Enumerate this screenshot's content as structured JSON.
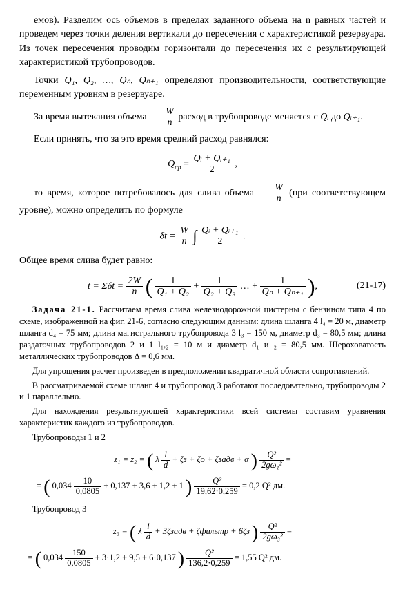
{
  "para1": "емов). Разделим ось объемов в пределах заданного объема на n равных частей и проведем через точки деления вертикали до пересечения с характеристикой резервуара. Из точек пересечения проводим горизонтали до пересечения их с результирующей характеристикой трубопроводов.",
  "para2_pre": "Точки ",
  "para2_q": "Q₁, Q₂, …, Qₙ, Qₙ₊₁",
  "para2_post": " определяют производительности, соответствующие переменным уровням в резервуаре.",
  "para3_pre": "За время вытекания объема ",
  "para3_post": " расход в трубопроводе меняется с ",
  "para3_qi": "Qᵢ",
  "para3_to": " до ",
  "para3_qi1": "Qᵢ₊₁",
  "para4": "Если принять, что за это время средний расход равнялся:",
  "eq1_lhs": "Q",
  "eq1_sub": "cp",
  "eq1_eq": " = ",
  "eq1_num": "Qᵢ + Qᵢ₊₁",
  "eq1_den": "2",
  "para5_pre": "то время, которое потребовалось для слива объема ",
  "para5_post": " (при соответствующем уровне), можно определить по формуле",
  "eq2_lhs": "δt = ",
  "eq2_Wn_num": "W",
  "eq2_Wn_den": "n",
  "eq2_slash": " / ",
  "eq2_num": "Qᵢ + Qᵢ₊₁",
  "eq2_den": "2",
  "para6": "Общее время слива будет равно:",
  "eq3_lhs": "t = Σδt = ",
  "eq3_2Wn_num": "2W",
  "eq3_2Wn_den": "n",
  "eq3_f1_num": "1",
  "eq3_f1_den": "Q₁ + Q₂",
  "eq3_plus": " + ",
  "eq3_f2_num": "1",
  "eq3_f2_den": "Q₂ + Q₃",
  "eq3_dots": " … + ",
  "eq3_f3_num": "1",
  "eq3_f3_den": "Qₙ + Qₙ₊₁",
  "eq3_num": "(21-17)",
  "task_title": "Задача 21-1.",
  "task_body": " Рассчитаем время слива железнодорожной цистерны с бензином типа 4 по схеме, изображенной на фиг. 21-6, согласно следующим данным: длина шланга 4 l₄ = 20 м, диаметр шланга d₄ = 75 мм; длина магистрального трубопровода 3 l₃ = 150 м, диаметр d₃ = 80,5 мм; длина раздаточных трубопроводов 2 и 1 l₁,₂ = 10 м и диаметр d₁ и ₂ = 80,5 мм. Шероховатость металлических трубопроводов Δ = 0,6 мм.",
  "task_p2": "Для упрощения расчет произведен в предположении квадратичной области сопротивлений.",
  "task_p3": "В рассматриваемой схеме шланг 4 и трубопровод 3 работают последовательно, трубопроводы 2 и 1 параллельно.",
  "task_p4": "Для нахождения результирующей характеристики всей системы составим уравнения характеристик каждого из трубопроводов.",
  "pipes12_label": "Трубопроводы 1 и 2",
  "eq4_lhs": "z₁ = z₂ = ",
  "eq4_lam": "λ ",
  "eq4_ld_num": "l",
  "eq4_ld_den": "d",
  "eq4_mid": " + ζз + ζо + ζзадв + α",
  "eq4_q2_num": "Q²",
  "eq4_q2_den": "2gω₁²",
  "eq4_eq2": " =",
  "eq5_pre": "= ",
  "eq5_coef": "0,034 ",
  "eq5_f_num": "10",
  "eq5_f_den": "0,0805",
  "eq5_mid": " + 0,137 + 3,6 + 1,2 + 1",
  "eq5_q2_num": "Q²",
  "eq5_q2_den": "19,62·0,259",
  "eq5_res": " = 0,2 Q² дм.",
  "pipe3_label": "Трубопровод 3",
  "eq6_lhs": "z₃ = ",
  "eq6_lam": "λ ",
  "eq6_ld_num": "l",
  "eq6_ld_den": "d",
  "eq6_mid": " + 3ζзадв + ζфильтр + 6ζз",
  "eq6_q2_num": "Q²",
  "eq6_q2_den": "2gω₃²",
  "eq6_eq2": " =",
  "eq7_pre": "= ",
  "eq7_coef": "0,034 ",
  "eq7_f_num": "150",
  "eq7_f_den": "0,0805",
  "eq7_mid": " + 3·1,2 + 9,5 + 6·0,137",
  "eq7_q2_num": "Q²",
  "eq7_q2_den": "136,2·0,259",
  "eq7_res": " = 1,55 Q² дм.",
  "Wn_num": "W",
  "Wn_den": "n",
  "dot": "."
}
